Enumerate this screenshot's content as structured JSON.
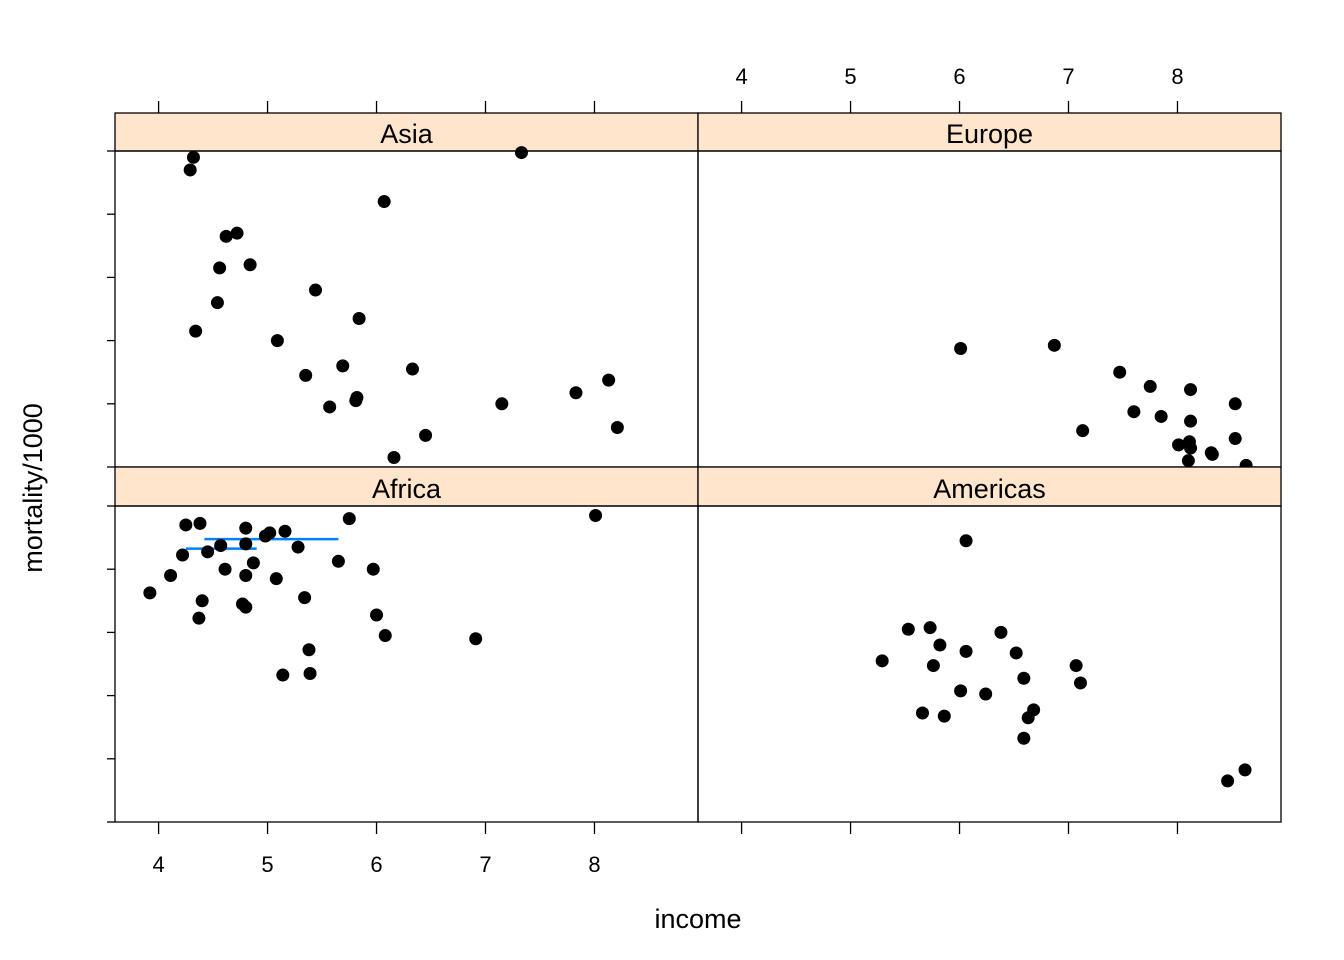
{
  "chart_data": {
    "type": "scatter",
    "xlabel": "income",
    "ylabel": "mortality/1000",
    "layout": "2x2 trellis",
    "colors": {
      "strip": "#ffe5cc",
      "points": "#000000",
      "segments": "#0080ff",
      "frame": "#000000"
    },
    "xlim": [
      3.6,
      8.95
    ],
    "ylim": [
      0,
      1
    ],
    "x_ticks": [
      4,
      5,
      6,
      7,
      8
    ],
    "panels": [
      {
        "name": "Asia",
        "points": [
          [
            4.32,
            0.98
          ],
          [
            4.29,
            0.94
          ],
          [
            7.33,
            0.995
          ],
          [
            6.07,
            0.84
          ],
          [
            4.72,
            0.74
          ],
          [
            4.62,
            0.73
          ],
          [
            4.56,
            0.63
          ],
          [
            4.84,
            0.64
          ],
          [
            5.44,
            0.56
          ],
          [
            4.54,
            0.52
          ],
          [
            4.34,
            0.43
          ],
          [
            5.84,
            0.47
          ],
          [
            5.09,
            0.4
          ],
          [
            5.35,
            0.29
          ],
          [
            5.69,
            0.32
          ],
          [
            6.33,
            0.31
          ],
          [
            5.82,
            0.22
          ],
          [
            5.81,
            0.21
          ],
          [
            5.57,
            0.19
          ],
          [
            7.15,
            0.2
          ],
          [
            7.83,
            0.235
          ],
          [
            8.13,
            0.275
          ],
          [
            8.21,
            0.125
          ],
          [
            6.45,
            0.1
          ],
          [
            6.16,
            0.03
          ]
        ]
      },
      {
        "name": "Europe",
        "points": [
          [
            6.01,
            0.375
          ],
          [
            6.87,
            0.385
          ],
          [
            7.47,
            0.3
          ],
          [
            7.75,
            0.255
          ],
          [
            8.12,
            0.245
          ],
          [
            8.53,
            0.2
          ],
          [
            7.6,
            0.175
          ],
          [
            7.85,
            0.16
          ],
          [
            8.12,
            0.145
          ],
          [
            7.13,
            0.115
          ],
          [
            8.53,
            0.09
          ],
          [
            8.01,
            0.07
          ],
          [
            8.11,
            0.08
          ],
          [
            8.12,
            0.06
          ],
          [
            8.31,
            0.045
          ],
          [
            8.32,
            0.04
          ],
          [
            8.1,
            0.02
          ],
          [
            8.63,
            0.005
          ]
        ]
      },
      {
        "name": "Africa",
        "points": [
          [
            8.01,
            0.97
          ],
          [
            5.75,
            0.96
          ],
          [
            4.25,
            0.94
          ],
          [
            4.38,
            0.945
          ],
          [
            4.8,
            0.93
          ],
          [
            5.02,
            0.915
          ],
          [
            5.16,
            0.92
          ],
          [
            4.98,
            0.905
          ],
          [
            4.8,
            0.88
          ],
          [
            4.57,
            0.875
          ],
          [
            5.28,
            0.87
          ],
          [
            4.45,
            0.855
          ],
          [
            4.22,
            0.845
          ],
          [
            5.65,
            0.825
          ],
          [
            4.87,
            0.82
          ],
          [
            5.97,
            0.8
          ],
          [
            4.11,
            0.78
          ],
          [
            4.61,
            0.8
          ],
          [
            4.8,
            0.78
          ],
          [
            5.08,
            0.77
          ],
          [
            3.92,
            0.725
          ],
          [
            4.4,
            0.7
          ],
          [
            4.77,
            0.69
          ],
          [
            4.8,
            0.68
          ],
          [
            5.34,
            0.71
          ],
          [
            4.37,
            0.645
          ],
          [
            6.0,
            0.655
          ],
          [
            6.08,
            0.59
          ],
          [
            6.91,
            0.58
          ],
          [
            5.38,
            0.545
          ],
          [
            5.14,
            0.465
          ],
          [
            5.39,
            0.47
          ]
        ],
        "segments": [
          [
            [
              4.42,
              0.895
            ],
            [
              5.65,
              0.895
            ]
          ],
          [
            [
              4.25,
              0.865
            ],
            [
              4.9,
              0.865
            ]
          ]
        ]
      },
      {
        "name": "Americas",
        "points": [
          [
            6.06,
            0.89
          ],
          [
            5.53,
            0.61
          ],
          [
            5.73,
            0.615
          ],
          [
            6.38,
            0.6
          ],
          [
            5.82,
            0.56
          ],
          [
            6.06,
            0.54
          ],
          [
            6.52,
            0.535
          ],
          [
            5.29,
            0.51
          ],
          [
            5.76,
            0.495
          ],
          [
            7.07,
            0.495
          ],
          [
            6.59,
            0.455
          ],
          [
            7.11,
            0.44
          ],
          [
            6.01,
            0.415
          ],
          [
            6.24,
            0.405
          ],
          [
            5.66,
            0.345
          ],
          [
            5.86,
            0.335
          ],
          [
            6.68,
            0.355
          ],
          [
            6.63,
            0.33
          ],
          [
            6.59,
            0.265
          ],
          [
            8.46,
            0.13
          ],
          [
            8.62,
            0.165
          ]
        ]
      }
    ]
  }
}
